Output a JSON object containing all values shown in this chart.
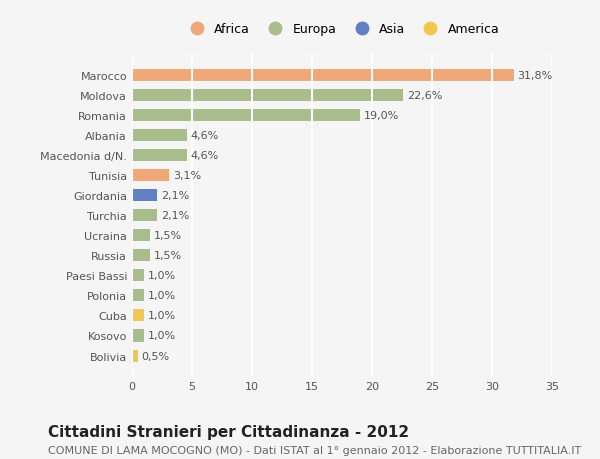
{
  "countries": [
    "Bolivia",
    "Kosovo",
    "Cuba",
    "Polonia",
    "Paesi Bassi",
    "Russia",
    "Ucraina",
    "Turchia",
    "Giordania",
    "Tunisia",
    "Macedonia d/N.",
    "Albania",
    "Romania",
    "Moldova",
    "Marocco"
  ],
  "values": [
    0.5,
    1.0,
    1.0,
    1.0,
    1.0,
    1.5,
    1.5,
    2.1,
    2.1,
    3.1,
    4.6,
    4.6,
    19.0,
    22.6,
    31.8
  ],
  "labels": [
    "0,5%",
    "1,0%",
    "1,0%",
    "1,0%",
    "1,0%",
    "1,5%",
    "1,5%",
    "2,1%",
    "2,1%",
    "3,1%",
    "4,6%",
    "4,6%",
    "19,0%",
    "22,6%",
    "31,8%"
  ],
  "continents": [
    "America",
    "Europa",
    "America",
    "Europa",
    "Europa",
    "Europa",
    "Europa",
    "Europa",
    "Asia",
    "Africa",
    "Europa",
    "Europa",
    "Europa",
    "Europa",
    "Africa"
  ],
  "continent_colors": {
    "Africa": "#F0A878",
    "Europa": "#A8BC8C",
    "Asia": "#6080C0",
    "America": "#F0C850"
  },
  "legend_order": [
    "Africa",
    "Europa",
    "Asia",
    "America"
  ],
  "title": "Cittadini Stranieri per Cittadinanza - 2012",
  "subtitle": "COMUNE DI LAMA MOCOGNO (MO) - Dati ISTAT al 1° gennaio 2012 - Elaborazione TUTTITALIA.IT",
  "xlim": [
    0,
    35
  ],
  "xticks": [
    0,
    5,
    10,
    15,
    20,
    25,
    30,
    35
  ],
  "background_color": "#f5f5f5",
  "grid_color": "#ffffff",
  "bar_height": 0.6,
  "title_fontsize": 11,
  "subtitle_fontsize": 8,
  "label_fontsize": 8,
  "tick_fontsize": 8,
  "legend_fontsize": 9
}
